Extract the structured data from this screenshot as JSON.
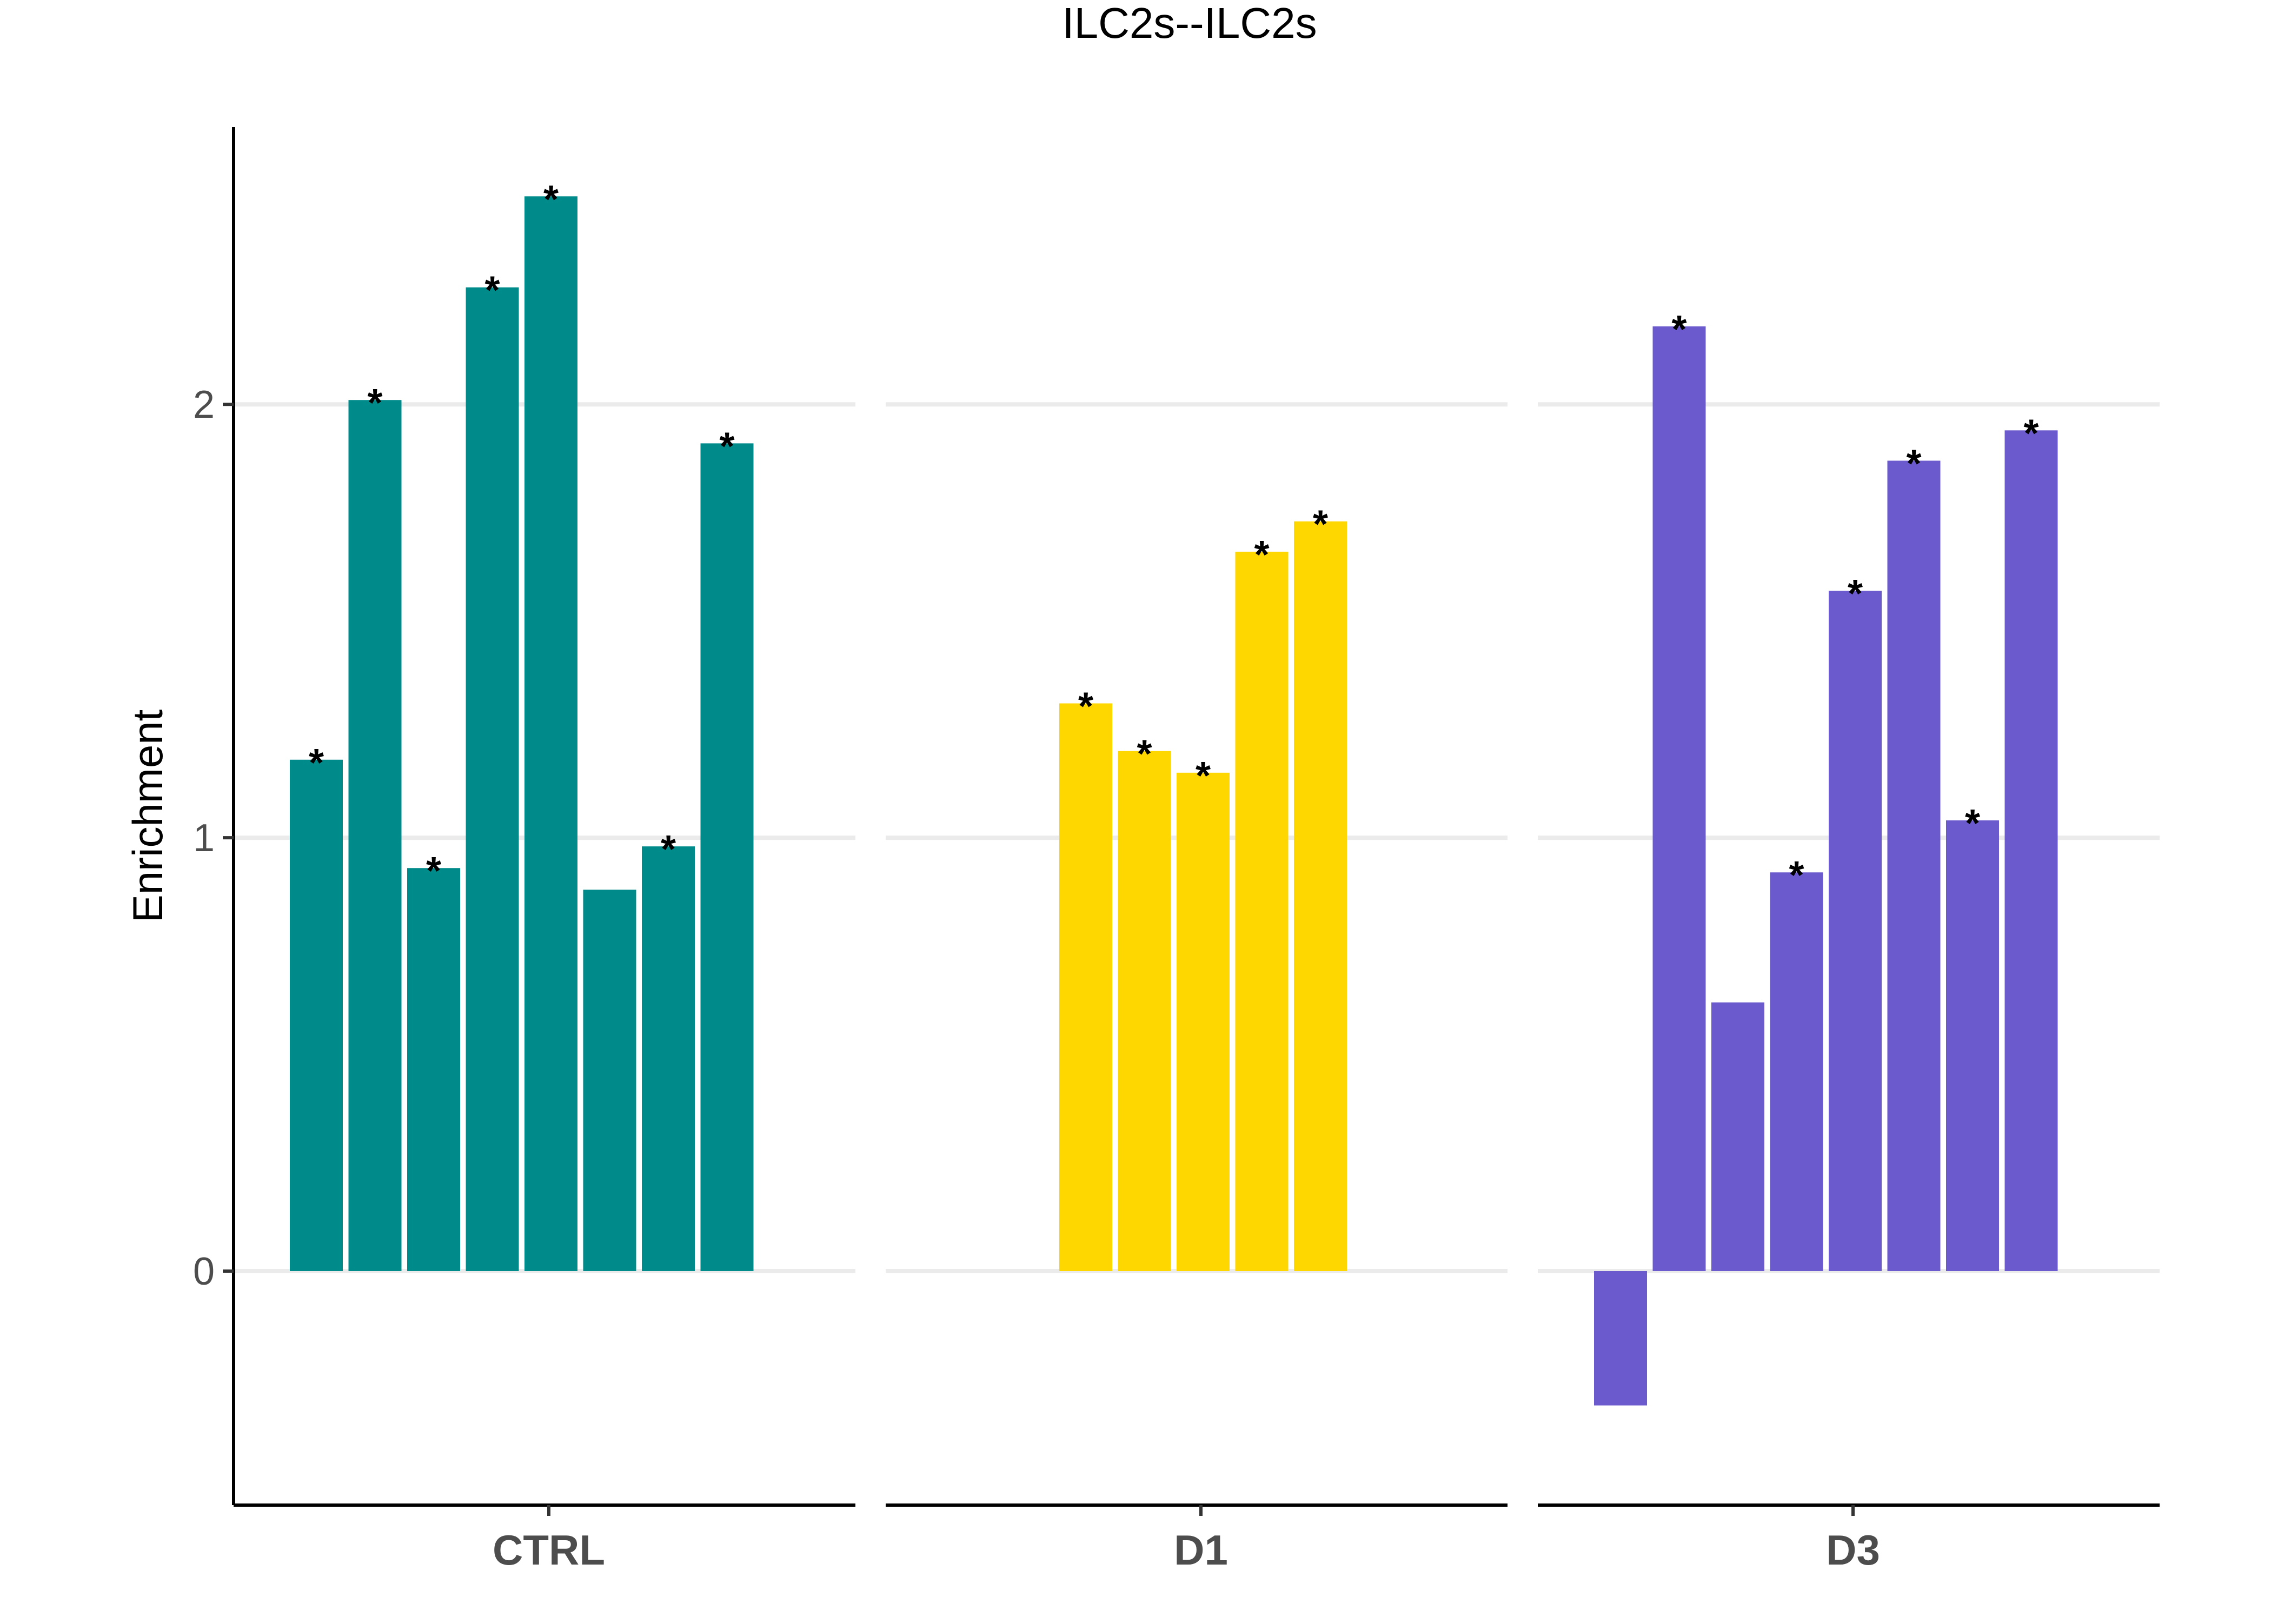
{
  "chart_data": {
    "type": "bar",
    "title": "ILC2s--ILC2s",
    "xlabel": "",
    "ylabel": "Enrichment",
    "ylim": [
      -0.54,
      2.64
    ],
    "yticks": [
      0,
      1,
      2
    ],
    "grid": true,
    "panels": [
      {
        "name": "CTRL",
        "color": "#008B8B",
        "values": [
          1.18,
          2.01,
          0.93,
          2.27,
          2.48,
          0.88,
          0.98,
          1.91
        ],
        "significant": [
          true,
          true,
          true,
          true,
          true,
          false,
          true,
          true
        ]
      },
      {
        "name": "D1",
        "color": "#FFD700",
        "values": [
          null,
          null,
          1.31,
          1.2,
          1.15,
          1.66,
          1.73,
          null
        ],
        "significant": [
          false,
          false,
          true,
          true,
          true,
          true,
          true,
          false
        ]
      },
      {
        "name": "D3",
        "color": "#6A5ACD",
        "values": [
          -0.31,
          2.18,
          0.62,
          0.92,
          1.57,
          1.87,
          1.04,
          1.94
        ],
        "significant": [
          false,
          true,
          false,
          true,
          true,
          true,
          true,
          true
        ]
      }
    ],
    "significance_marker": "*"
  }
}
